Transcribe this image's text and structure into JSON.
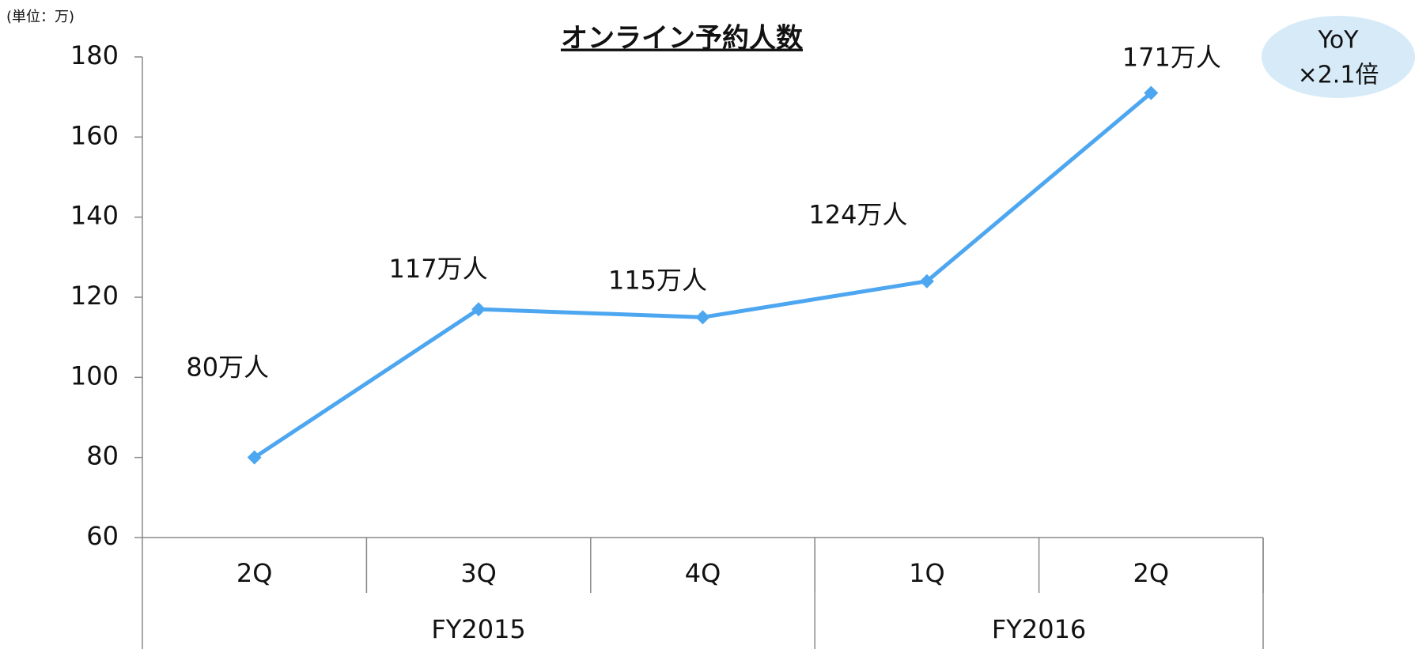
{
  "chart_data": {
    "type": "line",
    "title": "オンライン予約人数",
    "unit_note": "(単位：万)",
    "categories": [
      "2Q",
      "3Q",
      "4Q",
      "1Q",
      "2Q"
    ],
    "groups": [
      "FY2015",
      "FY2016"
    ],
    "series": [
      {
        "name": "オンライン予約人数",
        "color": "#4da6f0",
        "values": [
          80,
          117,
          115,
          124,
          171
        ],
        "value_labels": [
          "80万人",
          "117万人",
          "115万人",
          "124万人",
          "171万人"
        ]
      }
    ],
    "ylim": [
      60,
      180
    ],
    "yticks": [
      60,
      80,
      100,
      120,
      140,
      160,
      180
    ],
    "annotations": [
      "YoY",
      "×2.1倍"
    ]
  }
}
